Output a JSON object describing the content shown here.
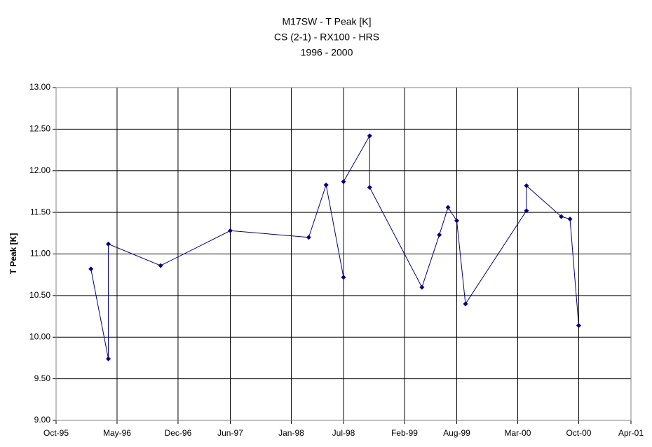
{
  "chart_data": {
    "type": "line",
    "title": "M17SW - T Peak [K]",
    "subtitle": [
      "CS (2-1) - RX100 - HRS",
      "1996 - 2000"
    ],
    "y_label": "T Peak [K]",
    "x": [
      "1996-02",
      "1996-04",
      "1996-04",
      "1996-10",
      "1997-06",
      "1998-03",
      "1998-05",
      "1998-07",
      "1998-07",
      "1998-10",
      "1998-10",
      "1999-04",
      "1999-06",
      "1999-07",
      "1999-08",
      "1999-09",
      "2000-04",
      "2000-04",
      "2000-08",
      "2000-09",
      "2000-10"
    ],
    "series": [
      {
        "name": "T Peak",
        "color": "#000080",
        "values": [
          10.82,
          9.74,
          11.12,
          10.86,
          11.28,
          11.2,
          11.83,
          10.72,
          11.87,
          12.42,
          11.8,
          10.6,
          11.23,
          11.56,
          11.4,
          10.4,
          11.52,
          11.82,
          11.45,
          11.42,
          10.14
        ]
      }
    ],
    "xlim": [
      "1995-10",
      "2001-04"
    ],
    "xticks": [
      {
        "value": "1995-10",
        "label": "Oct-95"
      },
      {
        "value": "1996-05",
        "label": "May-96"
      },
      {
        "value": "1996-12",
        "label": "Dec-96"
      },
      {
        "value": "1997-06",
        "label": "Jun-97"
      },
      {
        "value": "1998-01",
        "label": "Jan-98"
      },
      {
        "value": "1998-07",
        "label": "Jul-98"
      },
      {
        "value": "1999-02",
        "label": "Feb-99"
      },
      {
        "value": "1999-08",
        "label": "Aug-99"
      },
      {
        "value": "2000-03",
        "label": "Mar-00"
      },
      {
        "value": "2000-10",
        "label": "Oct-00"
      },
      {
        "value": "2001-04",
        "label": "Apr-01"
      }
    ],
    "ylim": [
      9,
      13
    ],
    "yticks": [
      {
        "value": 9,
        "label": "9.00"
      },
      {
        "value": 9.5,
        "label": "9.50"
      },
      {
        "value": 10,
        "label": "10.00"
      },
      {
        "value": 10.5,
        "label": "10.50"
      },
      {
        "value": 11,
        "label": "11.00"
      },
      {
        "value": 11.5,
        "label": "11.50"
      },
      {
        "value": 12,
        "label": "12.00"
      },
      {
        "value": 12.5,
        "label": "12.50"
      },
      {
        "value": 13,
        "label": "13.00"
      }
    ],
    "grid": true
  }
}
